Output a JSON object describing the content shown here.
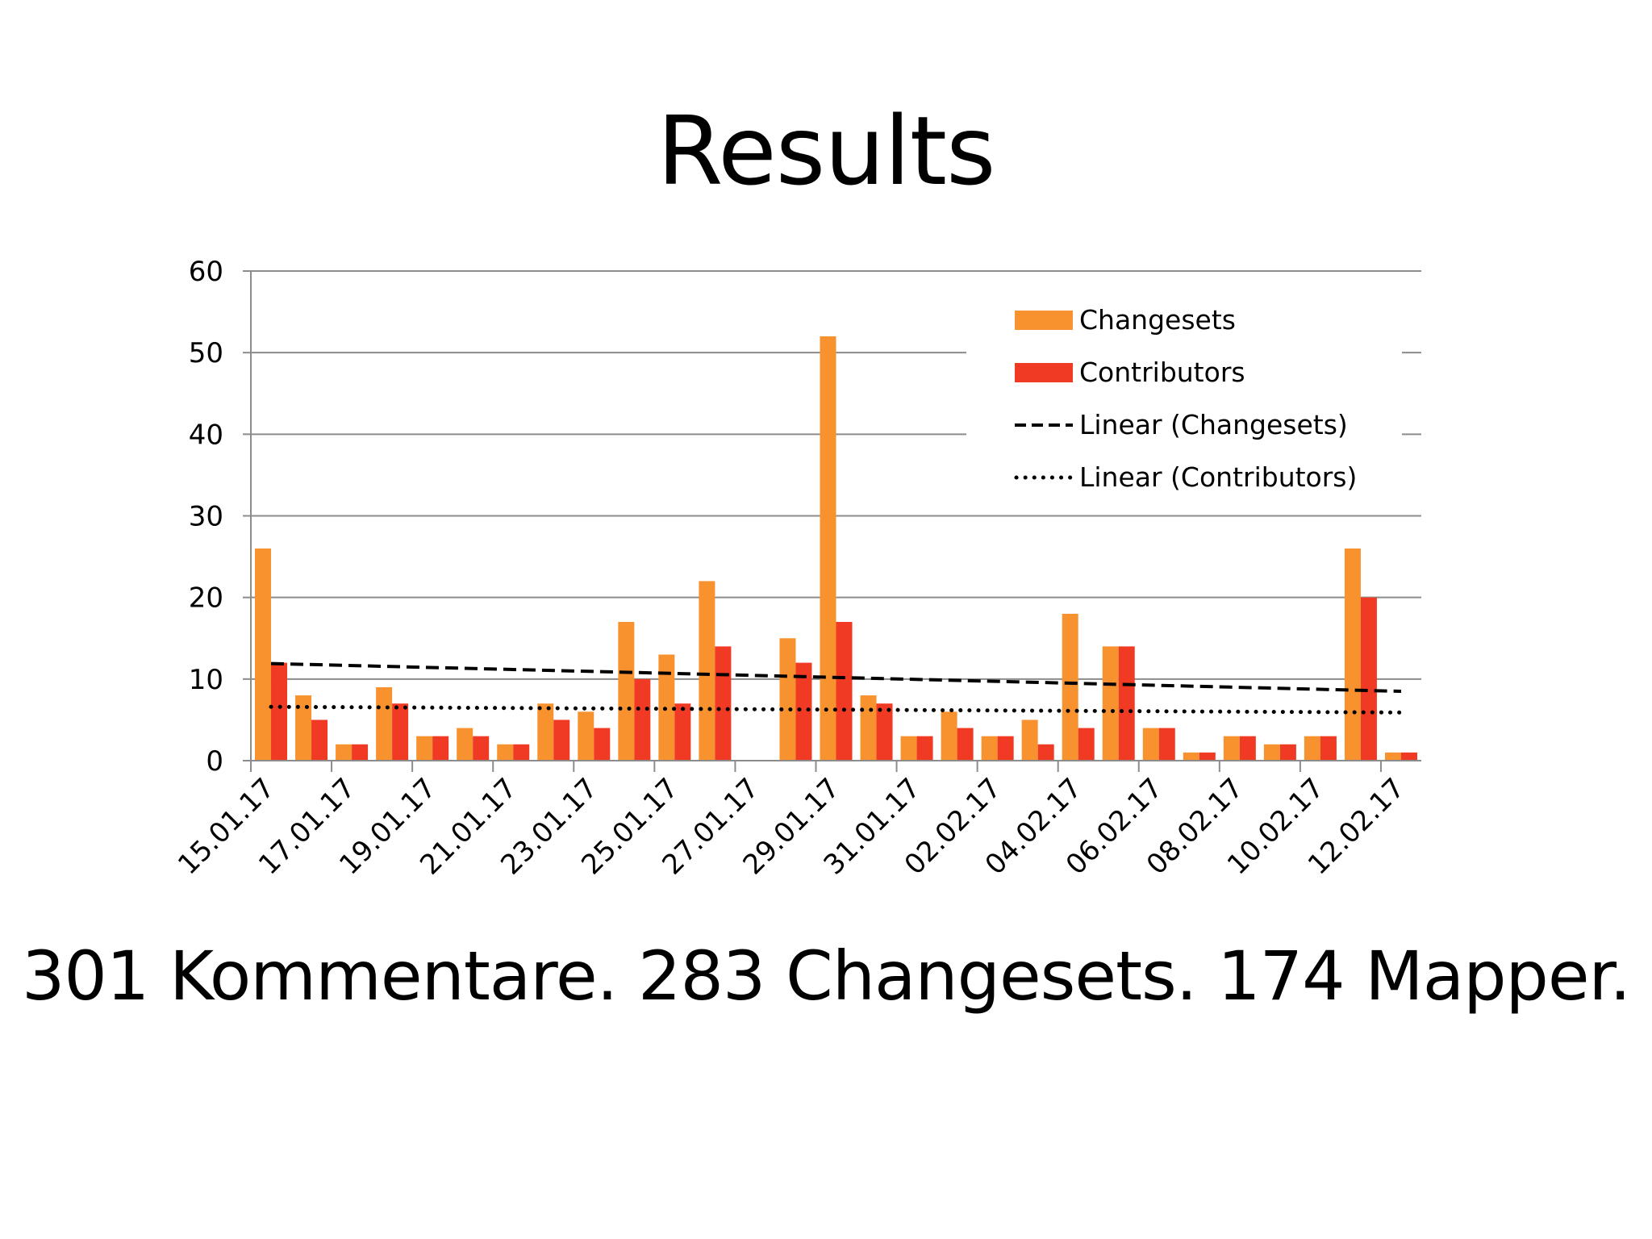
{
  "slide": {
    "title": "Results",
    "summary": "301 Kommentare. 283 Changesets. 174 Mapper."
  },
  "colors": {
    "changesets": "#F7922F",
    "contributors": "#F13A24",
    "grid": "#8C8C8C",
    "trend": "#000000"
  },
  "chart_data": {
    "type": "bar",
    "ylim": [
      0,
      60
    ],
    "yticks": [
      "0",
      "10",
      "20",
      "30",
      "40",
      "50",
      "60"
    ],
    "ytick_values": [
      0,
      10,
      20,
      30,
      40,
      50,
      60
    ],
    "grid": true,
    "legend_position": "top-right",
    "categories": [
      "15.01.17",
      "16.01.17",
      "17.01.17",
      "18.01.17",
      "19.01.17",
      "20.01.17",
      "21.01.17",
      "22.01.17",
      "23.01.17",
      "24.01.17",
      "25.01.17",
      "26.01.17",
      "27.01.17",
      "28.01.17",
      "29.01.17",
      "30.01.17",
      "31.01.17",
      "01.02.17",
      "02.02.17",
      "03.02.17",
      "04.02.17",
      "05.02.17",
      "06.02.17",
      "07.02.17",
      "08.02.17",
      "09.02.17",
      "10.02.17",
      "11.02.17",
      "12.02.17"
    ],
    "xtick_labels": [
      "15.01.17",
      "17.01.17",
      "19.01.17",
      "21.01.17",
      "23.01.17",
      "25.01.17",
      "27.01.17",
      "29.01.17",
      "31.01.17",
      "02.02.17",
      "04.02.17",
      "06.02.17",
      "08.02.17",
      "10.02.17",
      "12.02.17"
    ],
    "series": [
      {
        "name": "Changesets",
        "values": [
          26,
          8,
          2,
          9,
          3,
          4,
          2,
          7,
          6,
          17,
          13,
          22,
          0,
          15,
          52,
          8,
          3,
          6,
          3,
          5,
          18,
          14,
          4,
          1,
          3,
          2,
          3,
          26,
          1
        ]
      },
      {
        "name": "Contributors",
        "values": [
          12,
          5,
          2,
          7,
          3,
          3,
          2,
          5,
          4,
          10,
          7,
          14,
          0,
          12,
          17,
          7,
          3,
          4,
          3,
          2,
          4,
          14,
          4,
          1,
          3,
          2,
          3,
          20,
          1
        ]
      }
    ],
    "trendlines": [
      {
        "name": "Linear (Changesets)",
        "style": "dashed",
        "start": 11.9,
        "end": 8.5
      },
      {
        "name": "Linear (Contributors)",
        "style": "dotted",
        "start": 6.6,
        "end": 5.9
      }
    ]
  }
}
